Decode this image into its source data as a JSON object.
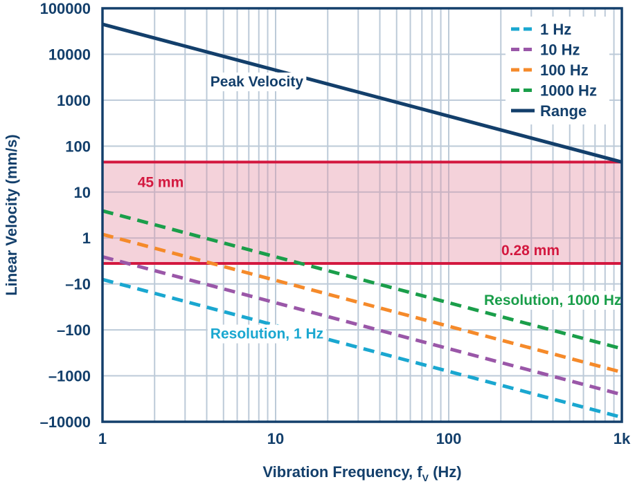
{
  "chart_data": {
    "type": "line",
    "title": "",
    "xlabel": "Vibration Frequency, f",
    "xlabel_sub": "V",
    "xlabel_suffix": " (Hz)",
    "ylabel": "Linear Velocity (mm/s)",
    "xscale": "log",
    "yscale": "log",
    "xlim": [
      1,
      1000
    ],
    "ylim": [
      0.0001,
      100000
    ],
    "grid": true,
    "x_ticks": [
      {
        "value": 1,
        "label": "1"
      },
      {
        "value": 10,
        "label": "10"
      },
      {
        "value": 100,
        "label": "100"
      },
      {
        "value": 1000,
        "label": "1k"
      }
    ],
    "y_ticks": [
      {
        "value": 100000,
        "label": "100000"
      },
      {
        "value": 10000,
        "label": "10000"
      },
      {
        "value": 1000,
        "label": "1000"
      },
      {
        "value": 100,
        "label": "100"
      },
      {
        "value": 10,
        "label": "10"
      },
      {
        "value": 1,
        "label": "1"
      },
      {
        "value": 0.1,
        "label": "–10"
      },
      {
        "value": 0.01,
        "label": "–100"
      },
      {
        "value": 0.001,
        "label": "–1000"
      },
      {
        "value": 0.0001,
        "label": "–10000"
      }
    ],
    "legend_position": "top-right",
    "series": [
      {
        "name": "1 Hz",
        "color": "#1aa7d0",
        "style": "dashed",
        "x": [
          1,
          1000
        ],
        "y": [
          0.125,
          0.000125
        ]
      },
      {
        "name": "10 Hz",
        "color": "#9a57a8",
        "style": "dashed",
        "x": [
          1,
          1000
        ],
        "y": [
          0.39,
          0.00039
        ]
      },
      {
        "name": "100 Hz",
        "color": "#f58a2a",
        "style": "dashed",
        "x": [
          1,
          1000
        ],
        "y": [
          1.2,
          0.0012
        ]
      },
      {
        "name": "1000 Hz",
        "color": "#1a9e4a",
        "style": "dashed",
        "x": [
          1,
          1000
        ],
        "y": [
          3.9,
          0.0039
        ]
      },
      {
        "name": "Range",
        "color": "#133f6b",
        "style": "solid",
        "x": [
          1,
          1000
        ],
        "y": [
          45000,
          45
        ]
      }
    ],
    "band": {
      "upper": 45,
      "lower": 0.28,
      "color": "#d3183f",
      "fill": "#f4d2da",
      "upper_label": "45 mm",
      "lower_label": "0.28 mm"
    },
    "annotations": [
      {
        "text": "Peak Velocity",
        "color": "#133f6b",
        "x": 4.2,
        "y": 2000
      },
      {
        "text": "Resolution, 1000 Hz",
        "color": "#1a9e4a",
        "x": 160,
        "y": 0.035
      },
      {
        "text": "Resolution, 1 Hz",
        "color": "#1aa7d0",
        "x": 4.2,
        "y": 0.0065
      }
    ]
  }
}
